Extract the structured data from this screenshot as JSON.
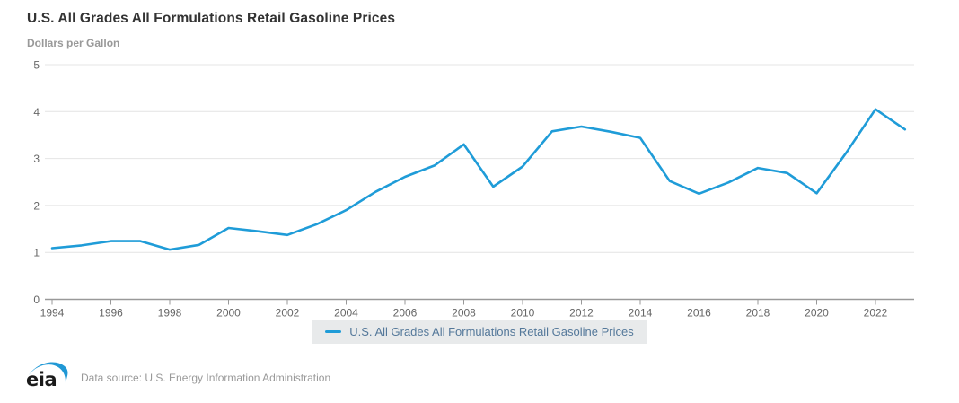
{
  "header": {
    "title": "U.S. All Grades All Formulations Retail Gasoline Prices",
    "subtitle": "Dollars per Gallon"
  },
  "legend": {
    "label": "U.S. All Grades All Formulations Retail Gasoline Prices"
  },
  "footer": {
    "logo_text": "eia",
    "source": "Data source: U.S. Energy Information Administration"
  },
  "colors": {
    "line": "#1f9cd8",
    "grid": "#e4e4e4",
    "axis": "#999999",
    "tick_text": "#666666",
    "title_text": "#333333",
    "subtitle_text": "#999999",
    "legend_bg": "#e8eaeb",
    "legend_text": "#54789a",
    "source_text": "#999999"
  },
  "chart_data": {
    "type": "line",
    "title": "U.S. All Grades All Formulations Retail Gasoline Prices",
    "xlabel": "",
    "ylabel": "Dollars per Gallon",
    "series_name": "U.S. All Grades All Formulations Retail Gasoline Prices",
    "x": [
      1994,
      1995,
      1996,
      1997,
      1998,
      1999,
      2000,
      2001,
      2002,
      2003,
      2004,
      2005,
      2006,
      2007,
      2008,
      2009,
      2010,
      2011,
      2012,
      2013,
      2014,
      2015,
      2016,
      2017,
      2018,
      2019,
      2020,
      2021,
      2022,
      2023
    ],
    "values": [
      1.09,
      1.15,
      1.24,
      1.24,
      1.06,
      1.16,
      1.52,
      1.45,
      1.37,
      1.6,
      1.9,
      2.29,
      2.61,
      2.85,
      3.3,
      2.4,
      2.83,
      3.58,
      3.68,
      3.57,
      3.44,
      2.52,
      2.25,
      2.49,
      2.8,
      2.69,
      2.26,
      3.12,
      4.05,
      3.62
    ],
    "ylim": [
      0,
      5
    ],
    "yticks": [
      0,
      1,
      2,
      3,
      4,
      5
    ],
    "xticks": [
      1994,
      1996,
      1998,
      2000,
      2002,
      2004,
      2006,
      2008,
      2010,
      2012,
      2014,
      2016,
      2018,
      2020,
      2022
    ],
    "grid": true,
    "legend_position": "bottom"
  }
}
